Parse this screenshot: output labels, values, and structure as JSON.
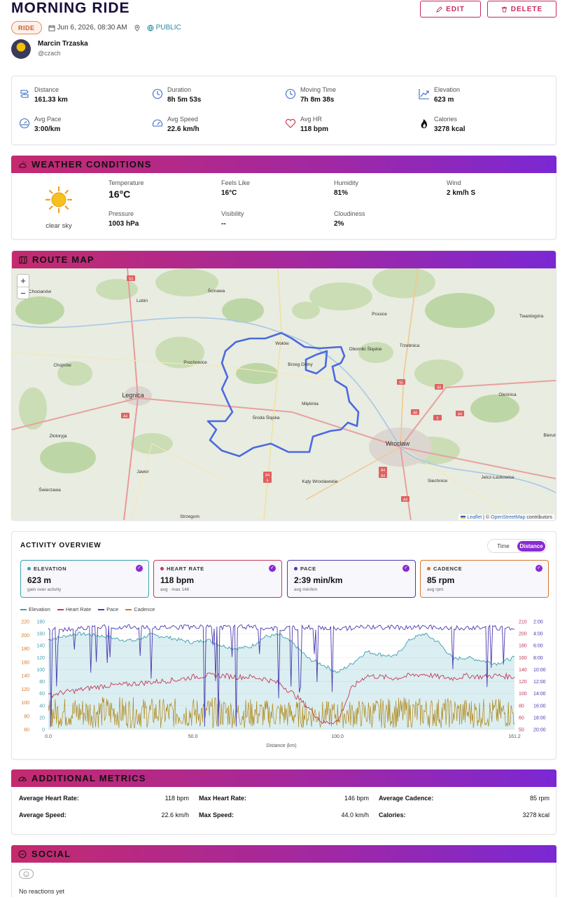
{
  "activity": {
    "title": "MORNING RIDE",
    "type_badge": "RIDE",
    "date": "Jun 6, 2026, 08:30 AM",
    "visibility": "PUBLIC",
    "edit_label": "EDIT",
    "delete_label": "DELETE"
  },
  "user": {
    "name": "Marcin Trzaska",
    "handle": "@czach"
  },
  "stats": [
    {
      "label": "Distance",
      "value": "161.33 km",
      "icon": "route-icon"
    },
    {
      "label": "Duration",
      "value": "8h 5m 53s",
      "icon": "clock-icon"
    },
    {
      "label": "Moving Time",
      "value": "7h 8m 38s",
      "icon": "clock-icon"
    },
    {
      "label": "Elevation",
      "value": "623 m",
      "icon": "trend-up-icon"
    },
    {
      "label": "Avg Pace",
      "value": "3:00/km",
      "icon": "gauge-icon"
    },
    {
      "label": "Avg Speed",
      "value": "22.6 km/h",
      "icon": "speedometer-icon"
    },
    {
      "label": "Avg HR",
      "value": "118 bpm",
      "icon": "heart-icon"
    },
    {
      "label": "Calories",
      "value": "3278 kcal",
      "icon": "flame-icon"
    }
  ],
  "weather": {
    "title": "WEATHER CONDITIONS",
    "condition": "clear sky",
    "temperature": {
      "label": "Temperature",
      "value": "16°C"
    },
    "feels_like": {
      "label": "Feels Like",
      "value": "16°C"
    },
    "humidity": {
      "label": "Humidity",
      "value": "81%"
    },
    "wind": {
      "label": "Wind",
      "value": "2 km/h S"
    },
    "pressure": {
      "label": "Pressure",
      "value": "1003 hPa"
    },
    "visibility": {
      "label": "Visibility",
      "value": "--"
    },
    "cloudiness": {
      "label": "Cloudiness",
      "value": "2%"
    }
  },
  "map": {
    "title": "ROUTE MAP",
    "zoom_in": "+",
    "zoom_out": "−",
    "attribution_leaflet": "Leaflet",
    "attribution_sep": " | © ",
    "attribution_osm": "OpenStreetMap",
    "attribution_tail": " contributors",
    "places": [
      "Chocianów",
      "Lubin",
      "Ścinawa",
      "Prusice",
      "Twardogóra",
      "Wołów",
      "Oborniki Śląskie",
      "Trzebnica",
      "Chojnów",
      "Prochowice",
      "Brzeg Dolny",
      "Oleśnica",
      "Legnica",
      "Miękinia",
      "Środa Śląska",
      "Złotoryja",
      "Wrocław",
      "Bierutów",
      "Jawor",
      "Kąty Wrocławskie",
      "Siechnice",
      "Jelcz-Laskowice",
      "Świerzawa",
      "Strzegom"
    ],
    "road_labels": [
      "S3",
      "S5",
      "S8",
      "A8",
      "A4",
      "A4",
      "A4",
      "A4",
      "5",
      "A4",
      "5",
      "A4"
    ]
  },
  "overview": {
    "title": "ACTIVITY OVERVIEW",
    "toggle_time": "Time",
    "toggle_distance": "Distance",
    "cards": [
      {
        "label": "ELEVATION",
        "value": "623 m",
        "sub": "gain over activity",
        "color": "#3aa0b0"
      },
      {
        "label": "HEART RATE",
        "value": "118 bpm",
        "sub": "avg · max 146",
        "color": "#c23a5a"
      },
      {
        "label": "PACE",
        "value": "2:39 min/km",
        "sub": "avg min/km",
        "color": "#4a3ab0"
      },
      {
        "label": "CADENCE",
        "value": "85 rpm",
        "sub": "avg rpm",
        "color": "#d4782a"
      }
    ],
    "check": "✓"
  },
  "chart_data": {
    "type": "line",
    "xlabel": "Distance (km)",
    "x_ticks": [
      "0.0",
      "50.0",
      "100.0",
      "161.2"
    ],
    "xlim": [
      0,
      161.2
    ],
    "legend": [
      "Elevation",
      "Heart Rate",
      "Pace",
      "Cadence"
    ],
    "axes": {
      "cadence_ticks": [
        "220",
        "200",
        "180",
        "160",
        "140",
        "120",
        "100",
        "80",
        "60"
      ],
      "elevation_ticks": [
        "180",
        "160",
        "140",
        "120",
        "100",
        "80",
        "60",
        "40",
        "20",
        "0"
      ],
      "hr_ticks": [
        "210",
        "200",
        "180",
        "160",
        "140",
        "120",
        "100",
        "80",
        "60",
        "50"
      ],
      "pace_ticks": [
        "2:00",
        "4:00",
        "6:00",
        "8:00",
        "10:00",
        "12:00",
        "14:00",
        "16:00",
        "18:00",
        "20:00"
      ]
    },
    "series": [
      {
        "name": "Elevation",
        "color": "#3aa0b0",
        "x": [
          0,
          5,
          10,
          15,
          20,
          25,
          30,
          35,
          40,
          45,
          50,
          55,
          60,
          65,
          70,
          75,
          80,
          85,
          90,
          95,
          100,
          105,
          110,
          115,
          120,
          125,
          130,
          135,
          140,
          145,
          150,
          155,
          161.2
        ],
        "values": [
          150,
          155,
          160,
          158,
          155,
          150,
          148,
          158,
          155,
          150,
          145,
          150,
          140,
          135,
          138,
          155,
          158,
          142,
          118,
          108,
          95,
          110,
          130,
          125,
          122,
          150,
          160,
          145,
          118,
          120,
          115,
          110,
          120
        ]
      },
      {
        "name": "Heart Rate",
        "color": "#c23a5a",
        "x": [
          0,
          5,
          10,
          15,
          20,
          25,
          30,
          35,
          40,
          45,
          50,
          55,
          60,
          65,
          70,
          75,
          80,
          85,
          90,
          95,
          100,
          105,
          110,
          115,
          120,
          125,
          130,
          135,
          140,
          145,
          150,
          155,
          161.2
        ],
        "values": [
          100,
          105,
          108,
          112,
          115,
          116,
          118,
          120,
          122,
          124,
          128,
          130,
          130,
          128,
          128,
          125,
          118,
          102,
          82,
          60,
          62,
          112,
          130,
          128,
          126,
          130,
          132,
          128,
          126,
          130,
          128,
          130,
          128
        ]
      },
      {
        "name": "Pace",
        "color": "#4a3ab0",
        "x": [
          0,
          10,
          20,
          30,
          40,
          50,
          60,
          70,
          80,
          90,
          100,
          110,
          120,
          130,
          140,
          150,
          161.2
        ],
        "values": [
          3.0,
          2.8,
          2.5,
          2.5,
          2.6,
          2.5,
          2.6,
          2.5,
          2.8,
          2.5,
          2.8,
          2.5,
          2.6,
          2.5,
          2.7,
          2.6,
          2.7
        ]
      },
      {
        "name": "Cadence",
        "color": "#b0881a",
        "x": [
          0,
          20,
          40,
          60,
          80,
          100,
          120,
          140,
          161.2
        ],
        "values": [
          85,
          88,
          84,
          86,
          82,
          80,
          86,
          85,
          84
        ]
      }
    ]
  },
  "metrics": {
    "title": "ADDITIONAL METRICS",
    "rows": [
      {
        "label": "Average Heart Rate:",
        "value": "118 bpm"
      },
      {
        "label": "Max Heart Rate:",
        "value": "146 bpm"
      },
      {
        "label": "Average Cadence:",
        "value": "85 rpm"
      },
      {
        "label": "Average Speed:",
        "value": "22.6 km/h"
      },
      {
        "label": "Max Speed:",
        "value": "44.0 km/h"
      },
      {
        "label": "Calories:",
        "value": "3278 kcal"
      }
    ]
  },
  "social": {
    "title": "SOCIAL",
    "empty": "No reactions yet"
  },
  "colors": {
    "accent": "#8a2ad4",
    "header_start": "#c42a6e",
    "header_end": "#7b28d4",
    "route": "#4a6ae0"
  }
}
